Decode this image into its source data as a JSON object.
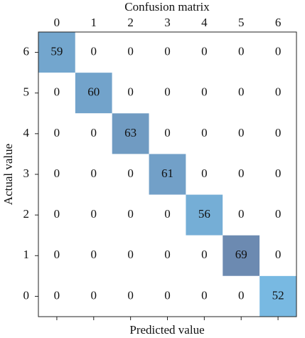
{
  "chart_data": {
    "type": "heatmap",
    "title": "Confusion matrix",
    "xlabel": "Predicted value",
    "ylabel": "Actual value",
    "x_categories": [
      "0",
      "1",
      "2",
      "3",
      "4",
      "5",
      "6"
    ],
    "y_categories": [
      "6",
      "5",
      "4",
      "3",
      "2",
      "1",
      "0"
    ],
    "values": [
      [
        59,
        0,
        0,
        0,
        0,
        0,
        0
      ],
      [
        0,
        60,
        0,
        0,
        0,
        0,
        0
      ],
      [
        0,
        0,
        63,
        0,
        0,
        0,
        0
      ],
      [
        0,
        0,
        0,
        61,
        0,
        0,
        0
      ],
      [
        0,
        0,
        0,
        0,
        56,
        0,
        0
      ],
      [
        0,
        0,
        0,
        0,
        0,
        69,
        0
      ],
      [
        0,
        0,
        0,
        0,
        0,
        0,
        52
      ]
    ],
    "color_min": "#78b9e2",
    "color_max": "#6c8ab1",
    "empty_color": "#ffffff"
  }
}
